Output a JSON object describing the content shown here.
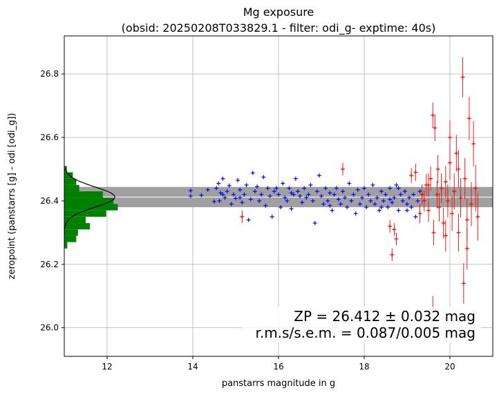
{
  "chart_data": {
    "type": "scatter",
    "title_line1": "Mg exposure",
    "title_line2": "(obsid: 20250208T033829.1 - filter: odi_g- exptime: 40s)",
    "xlabel": "panstarrs magnitude in g",
    "ylabel": "zeropoint (panstarrs [g] - odi [odi_g])",
    "xlim": [
      11.0,
      21.0
    ],
    "ylim": [
      25.91,
      26.92
    ],
    "xticks": [
      12,
      14,
      16,
      18,
      20
    ],
    "yticks": [
      26.0,
      26.2,
      26.4,
      26.6,
      26.8
    ],
    "xtick_labels": [
      "12",
      "14",
      "16",
      "18",
      "20"
    ],
    "ytick_labels": [
      "26.0",
      "26.2",
      "26.4",
      "26.6",
      "26.8"
    ],
    "grid": true,
    "zp": 26.412,
    "zp_band": [
      26.38,
      26.444
    ],
    "annotation": {
      "line1": "ZP = 26.412 ± 0.032 mag",
      "line2": "r.m.s/s.e.m. = 0.087/0.005 mag"
    },
    "colors": {
      "used": "#0000ff",
      "rejected": "#ff0000",
      "histogram": "#008000",
      "band": "#a0a0a0",
      "zp_line": "#ffffff",
      "gaussian": "#000000"
    },
    "histogram": {
      "bin_edges": [
        26.25,
        26.27,
        26.29,
        26.31,
        26.33,
        26.35,
        26.37,
        26.39,
        26.41,
        26.43,
        26.45,
        26.47,
        26.49,
        26.51
      ],
      "x_extent": [
        0.07,
        0.28,
        0.32,
        0.6,
        0.5,
        0.98,
        1.25,
        1.15,
        0.9,
        0.35,
        0.28,
        0.2,
        0.06
      ]
    },
    "series": [
      {
        "label": "used",
        "points": [
          [
            13.95,
            26.415
          ],
          [
            13.95,
            26.432
          ],
          [
            14.2,
            26.418
          ],
          [
            14.35,
            26.435
          ],
          [
            14.5,
            26.398
          ],
          [
            14.55,
            26.44
          ],
          [
            14.6,
            26.455
          ],
          [
            14.62,
            26.4
          ],
          [
            14.65,
            26.425
          ],
          [
            14.7,
            26.47
          ],
          [
            14.75,
            26.41
          ],
          [
            14.8,
            26.43
          ],
          [
            14.85,
            26.448
          ],
          [
            14.9,
            26.39
          ],
          [
            14.95,
            26.42
          ],
          [
            15.0,
            26.408
          ],
          [
            15.05,
            26.465
          ],
          [
            15.1,
            26.435
          ],
          [
            15.15,
            26.395
          ],
          [
            15.2,
            26.42
          ],
          [
            15.25,
            26.45
          ],
          [
            15.3,
            26.34
          ],
          [
            15.35,
            26.405
          ],
          [
            15.4,
            26.488
          ],
          [
            15.45,
            26.43
          ],
          [
            15.5,
            26.445
          ],
          [
            15.55,
            26.4
          ],
          [
            15.6,
            26.42
          ],
          [
            15.65,
            26.475
          ],
          [
            15.7,
            26.385
          ],
          [
            15.75,
            26.44
          ],
          [
            15.8,
            26.415
          ],
          [
            15.85,
            26.35
          ],
          [
            15.9,
            26.43
          ],
          [
            15.95,
            26.44
          ],
          [
            16.0,
            26.42
          ],
          [
            16.05,
            26.38
          ],
          [
            16.1,
            26.455
          ],
          [
            16.15,
            26.41
          ],
          [
            16.2,
            26.4
          ],
          [
            16.25,
            26.44
          ],
          [
            16.3,
            26.375
          ],
          [
            16.35,
            26.42
          ],
          [
            16.4,
            26.47
          ],
          [
            16.45,
            26.43
          ],
          [
            16.5,
            26.415
          ],
          [
            16.55,
            26.395
          ],
          [
            16.6,
            26.44
          ],
          [
            16.65,
            26.41
          ],
          [
            16.7,
            26.42
          ],
          [
            16.75,
            26.45
          ],
          [
            16.8,
            26.4
          ],
          [
            16.85,
            26.33
          ],
          [
            16.9,
            26.43
          ],
          [
            16.95,
            26.48
          ],
          [
            17.0,
            26.415
          ],
          [
            17.05,
            26.39
          ],
          [
            17.1,
            26.44
          ],
          [
            17.15,
            26.4
          ],
          [
            17.2,
            26.425
          ],
          [
            17.25,
            26.37
          ],
          [
            17.3,
            26.42
          ],
          [
            17.35,
            26.44
          ],
          [
            17.4,
            26.405
          ],
          [
            17.45,
            26.39
          ],
          [
            17.5,
            26.43
          ],
          [
            17.55,
            26.41
          ],
          [
            17.6,
            26.38
          ],
          [
            17.65,
            26.455
          ],
          [
            17.7,
            26.4
          ],
          [
            17.75,
            26.42
          ],
          [
            17.8,
            26.36
          ],
          [
            17.85,
            26.435
          ],
          [
            17.9,
            26.39
          ],
          [
            17.95,
            26.41
          ],
          [
            18.0,
            26.44
          ],
          [
            18.05,
            26.38
          ],
          [
            18.1,
            26.42
          ],
          [
            18.15,
            26.4
          ],
          [
            18.2,
            26.45
          ],
          [
            18.25,
            26.39
          ],
          [
            18.3,
            26.41
          ],
          [
            18.35,
            26.37
          ],
          [
            18.4,
            26.43
          ],
          [
            18.45,
            26.4
          ],
          [
            18.5,
            26.42
          ],
          [
            18.55,
            26.38
          ],
          [
            18.6,
            26.44
          ],
          [
            18.65,
            26.395
          ],
          [
            18.7,
            26.41
          ],
          [
            18.75,
            26.45
          ],
          [
            18.8,
            26.37
          ],
          [
            18.85,
            26.42
          ],
          [
            18.9,
            26.4
          ],
          [
            18.95,
            26.43
          ],
          [
            19.0,
            26.39
          ],
          [
            19.05,
            26.41
          ],
          [
            19.1,
            26.38
          ],
          [
            19.15,
            26.42
          ],
          [
            19.2,
            26.35
          ],
          [
            19.25,
            26.4
          ],
          [
            19.3,
            26.43
          ],
          [
            18.4,
            26.38
          ],
          [
            18.6,
            26.405
          ],
          [
            18.8,
            26.44
          ],
          [
            19.0,
            26.37
          ],
          [
            17.2,
            26.385
          ],
          [
            16.3,
            26.425
          ],
          [
            15.1,
            26.41
          ],
          [
            14.7,
            26.42
          ]
        ]
      },
      {
        "label": "rejected",
        "points": [
          [
            15.15,
            26.35
          ],
          [
            17.5,
            26.5
          ],
          [
            18.6,
            26.32
          ],
          [
            18.65,
            26.23
          ],
          [
            18.7,
            26.31
          ],
          [
            18.75,
            26.28
          ],
          [
            19.1,
            26.48
          ],
          [
            19.2,
            26.49
          ],
          [
            19.3,
            26.36
          ],
          [
            19.35,
            26.42
          ],
          [
            19.4,
            26.4
          ],
          [
            19.45,
            26.45
          ],
          [
            19.5,
            26.37
          ],
          [
            19.55,
            26.47
          ],
          [
            19.6,
            26.67
          ],
          [
            19.62,
            26.3
          ],
          [
            19.65,
            26.63
          ],
          [
            19.7,
            26.42
          ],
          [
            19.72,
            26.5
          ],
          [
            19.75,
            26.38
          ],
          [
            19.8,
            26.44
          ],
          [
            19.85,
            26.33
          ],
          [
            19.9,
            26.46
          ],
          [
            19.95,
            26.4
          ],
          [
            20.0,
            26.52
          ],
          [
            20.05,
            26.36
          ],
          [
            20.1,
            26.43
          ],
          [
            20.15,
            26.55
          ],
          [
            20.2,
            26.3
          ],
          [
            20.25,
            26.41
          ],
          [
            20.3,
            26.79
          ],
          [
            20.32,
            26.14
          ],
          [
            20.35,
            26.47
          ],
          [
            20.4,
            26.25
          ],
          [
            20.45,
            26.66
          ],
          [
            20.5,
            26.39
          ],
          [
            20.55,
            26.58
          ],
          [
            20.6,
            26.44
          ],
          [
            20.65,
            26.35
          ],
          [
            19.6,
            26.06
          ],
          [
            20.0,
            26.6
          ],
          [
            19.9,
            26.29
          ],
          [
            20.2,
            26.5
          ],
          [
            20.4,
            26.34
          ],
          [
            19.5,
            26.45
          ]
        ]
      }
    ]
  }
}
